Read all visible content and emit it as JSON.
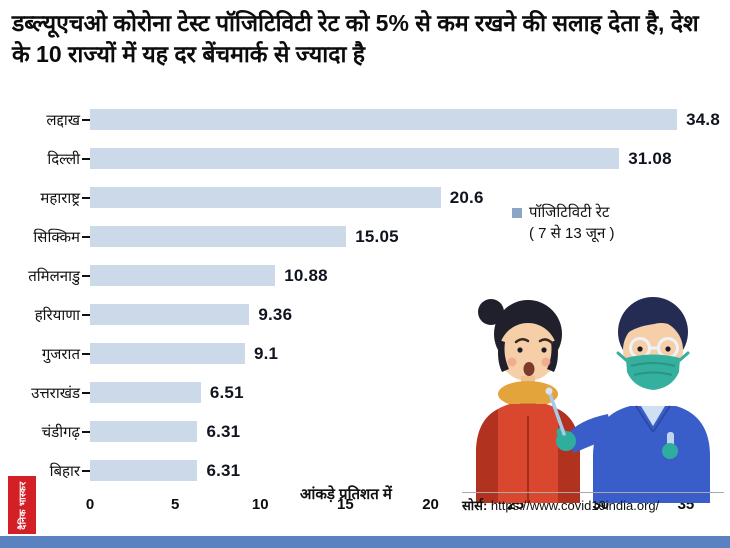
{
  "title": "डब्ल्यूएचओ कोरोना टेस्ट पॉजिटिविटी रेट को 5% से कम रखने की सलाह देता है, देश के 10 राज्यों में यह दर बेंचमार्क से ज्यादा है",
  "chart_data": {
    "type": "bar",
    "orientation": "horizontal",
    "categories": [
      "लद्दाख",
      "दिल्ली",
      "महाराष्ट्र",
      "सिक्किम",
      "तमिलनाडु",
      "हरियाणा",
      "गुजरात",
      "उत्तराखंड",
      "चंडीगढ़",
      "बिहार"
    ],
    "values": [
      34.8,
      31.08,
      20.6,
      15.05,
      10.88,
      9.36,
      9.1,
      6.51,
      6.31,
      6.31
    ],
    "value_labels": [
      "34.8",
      "31.08",
      "20.6",
      "15.05",
      "10.88",
      "9.36",
      "9.1",
      "6.51",
      "6.31",
      "6.31"
    ],
    "xticks": [
      "0",
      "5",
      "10",
      "15",
      "20",
      "25",
      "30",
      "35"
    ],
    "xtick_values": [
      0,
      5,
      10,
      15,
      20,
      25,
      30,
      35
    ],
    "xlim": [
      0,
      37
    ],
    "grid": false,
    "legend_position": "middle-right",
    "legend": {
      "label": "पॉजिटिविटी रेट",
      "sublabel": "( 7 से 13 जून )"
    },
    "note": "आंकड़े प्रतिशत में",
    "title": "डब्ल्यूएचओ कोरोना टेस्ट पॉजिटिविटी रेट को 5% से कम रखने की सलाह देता है, देश के 10 राज्यों में यह दर बेंचमार्क से ज्यादा है",
    "xlabel": "",
    "ylabel": ""
  },
  "source": {
    "label": "सोर्स:",
    "url": "https://www.covid19india.org/"
  },
  "logo": {
    "text": "दैनिक भास्कर"
  },
  "colors": {
    "bar": "#ccd9e8",
    "legend_swatch": "#8ba6c4",
    "bottom_strip": "#5b82c0",
    "logo_red": "#d32027",
    "value_text": "#10141f"
  }
}
